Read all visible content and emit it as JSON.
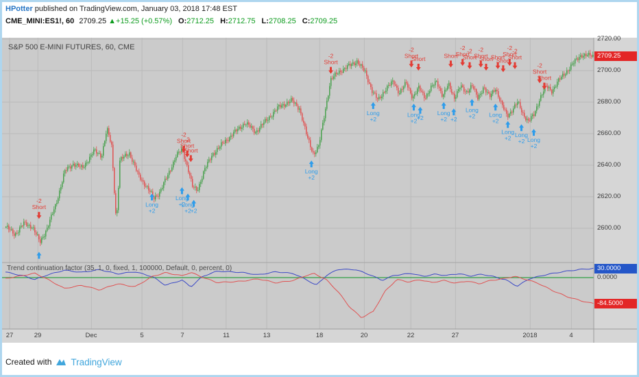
{
  "header": {
    "author": "HPotter",
    "published": " published on TradingView.com, January 03, 2018 17:48 EST",
    "symbol": "CME_MINI:ES1!, 60",
    "last": "2709.25",
    "change_arrow": "▲",
    "change": "+15.25 (+0.57%)",
    "o_label": "O:",
    "o": "2712.25",
    "h_label": "H:",
    "h": "2712.75",
    "l_label": "L:",
    "l": "2708.25",
    "c_label": "C:",
    "c": "2709.25"
  },
  "footer": {
    "created_with": "Created with",
    "brand": "TradingView"
  },
  "chart_data": {
    "type": "candlestick+indicator",
    "title": "S&P 500 E-MINI FUTURES, 60, CME",
    "colors": {
      "up": "#47a04c",
      "down": "#e05151",
      "long": "#2d9ceb",
      "short": "#e33b33",
      "plot_bg": "#cbcbcb",
      "axis_bg": "#d6d6d6",
      "grid": "#bababa",
      "zero_line": "#2f9e44",
      "last_badge": "#e32626"
    },
    "price_pane": {
      "ylim": [
        2580,
        2721
      ],
      "last_price": 2709.25,
      "last_price_label": "2709.25",
      "ticks": [
        {
          "label": "2720.00",
          "value": 2720
        },
        {
          "label": "2700.00",
          "value": 2700
        },
        {
          "label": "2680.00",
          "value": 2680
        },
        {
          "label": "2660.00",
          "value": 2660
        },
        {
          "label": "2640.00",
          "value": 2640
        },
        {
          "label": "2620.00",
          "value": 2620
        },
        {
          "label": "2600.00",
          "value": 2600
        }
      ],
      "path": [
        [
          0,
          2601
        ],
        [
          0.015,
          2596
        ],
        [
          0.03,
          2603
        ],
        [
          0.045,
          2601
        ],
        [
          0.058,
          2591
        ],
        [
          0.07,
          2600
        ],
        [
          0.085,
          2615
        ],
        [
          0.1,
          2636
        ],
        [
          0.115,
          2641
        ],
        [
          0.13,
          2638
        ],
        [
          0.15,
          2649
        ],
        [
          0.163,
          2646
        ],
        [
          0.172,
          2663
        ],
        [
          0.18,
          2652
        ],
        [
          0.188,
          2603
        ],
        [
          0.194,
          2643
        ],
        [
          0.21,
          2648
        ],
        [
          0.225,
          2634
        ],
        [
          0.24,
          2626
        ],
        [
          0.252,
          2619
        ],
        [
          0.262,
          2623
        ],
        [
          0.275,
          2633
        ],
        [
          0.29,
          2646
        ],
        [
          0.3,
          2650
        ],
        [
          0.31,
          2638
        ],
        [
          0.318,
          2626
        ],
        [
          0.326,
          2624
        ],
        [
          0.338,
          2637
        ],
        [
          0.352,
          2647
        ],
        [
          0.37,
          2654
        ],
        [
          0.39,
          2661
        ],
        [
          0.408,
          2667
        ],
        [
          0.425,
          2661
        ],
        [
          0.445,
          2669
        ],
        [
          0.465,
          2677
        ],
        [
          0.487,
          2681
        ],
        [
          0.5,
          2676
        ],
        [
          0.513,
          2658
        ],
        [
          0.524,
          2647
        ],
        [
          0.533,
          2652
        ],
        [
          0.543,
          2673
        ],
        [
          0.553,
          2694
        ],
        [
          0.566,
          2699
        ],
        [
          0.58,
          2702
        ],
        [
          0.598,
          2706
        ],
        [
          0.612,
          2699
        ],
        [
          0.624,
          2687
        ],
        [
          0.634,
          2681
        ],
        [
          0.648,
          2689
        ],
        [
          0.66,
          2693
        ],
        [
          0.67,
          2686
        ],
        [
          0.682,
          2692
        ],
        [
          0.693,
          2683
        ],
        [
          0.703,
          2689
        ],
        [
          0.714,
          2683
        ],
        [
          0.724,
          2689
        ],
        [
          0.734,
          2693
        ],
        [
          0.744,
          2684
        ],
        [
          0.754,
          2691
        ],
        [
          0.764,
          2683
        ],
        [
          0.774,
          2690
        ],
        [
          0.784,
          2686
        ],
        [
          0.794,
          2691
        ],
        [
          0.804,
          2682
        ],
        [
          0.814,
          2690
        ],
        [
          0.824,
          2683
        ],
        [
          0.834,
          2689
        ],
        [
          0.844,
          2679
        ],
        [
          0.854,
          2671
        ],
        [
          0.862,
          2675
        ],
        [
          0.872,
          2680
        ],
        [
          0.88,
          2673
        ],
        [
          0.89,
          2668
        ],
        [
          0.9,
          2672
        ],
        [
          0.91,
          2683
        ],
        [
          0.92,
          2690
        ],
        [
          0.93,
          2687
        ],
        [
          0.94,
          2693
        ],
        [
          0.952,
          2698
        ],
        [
          0.965,
          2704
        ],
        [
          0.98,
          2710
        ],
        [
          1,
          2709.25
        ]
      ]
    },
    "signals": [
      {
        "t": 0.057,
        "price": 2606,
        "side": "short",
        "lines": [
          "-2",
          "Short"
        ]
      },
      {
        "t": 0.057,
        "price": 2585,
        "side": "long",
        "lines": []
      },
      {
        "t": 0.249,
        "price": 2622,
        "side": "long",
        "lines": [
          "Long",
          "+2"
        ]
      },
      {
        "t": 0.303,
        "price": 2648,
        "side": "short",
        "lines": [
          "-2",
          "Short"
        ]
      },
      {
        "t": 0.309,
        "price": 2645,
        "side": "short",
        "lines": [
          "-2",
          "Short"
        ]
      },
      {
        "t": 0.315,
        "price": 2642,
        "side": "short",
        "lines": [
          "Short"
        ]
      },
      {
        "t": 0.3,
        "price": 2626,
        "side": "long",
        "lines": [
          "Long",
          "+2"
        ]
      },
      {
        "t": 0.31,
        "price": 2622,
        "side": "long",
        "lines": [
          "Long",
          "+2"
        ]
      },
      {
        "t": 0.32,
        "price": 2618,
        "side": "long",
        "lines": [
          "+2"
        ]
      },
      {
        "t": 0.52,
        "price": 2643,
        "side": "long",
        "lines": [
          "Long",
          "+2"
        ]
      },
      {
        "t": 0.553,
        "price": 2698,
        "side": "short",
        "lines": [
          "-2",
          "Short"
        ]
      },
      {
        "t": 0.625,
        "price": 2680,
        "side": "long",
        "lines": [
          "Long",
          "+2"
        ]
      },
      {
        "t": 0.69,
        "price": 2702,
        "side": "short",
        "lines": [
          "-2",
          "Short"
        ]
      },
      {
        "t": 0.702,
        "price": 2700,
        "side": "short",
        "lines": [
          "Short"
        ]
      },
      {
        "t": 0.694,
        "price": 2679,
        "side": "long",
        "lines": [
          "Long",
          "+2"
        ]
      },
      {
        "t": 0.705,
        "price": 2677,
        "side": "long",
        "lines": [
          "+2"
        ]
      },
      {
        "t": 0.745,
        "price": 2680,
        "side": "long",
        "lines": [
          "Long",
          "+2"
        ]
      },
      {
        "t": 0.757,
        "price": 2702,
        "side": "short",
        "lines": [
          "Short"
        ]
      },
      {
        "t": 0.762,
        "price": 2676,
        "side": "long",
        "lines": [
          "+2"
        ]
      },
      {
        "t": 0.777,
        "price": 2703,
        "side": "short",
        "lines": [
          "-2",
          "Short"
        ]
      },
      {
        "t": 0.789,
        "price": 2701,
        "side": "short",
        "lines": [
          "-2",
          "Short"
        ]
      },
      {
        "t": 0.793,
        "price": 2682,
        "side": "long",
        "lines": [
          "Long",
          "+2"
        ]
      },
      {
        "t": 0.808,
        "price": 2702,
        "side": "short",
        "lines": [
          "-2",
          "Short"
        ]
      },
      {
        "t": 0.817,
        "price": 2700,
        "side": "short",
        "lines": [
          "Short"
        ]
      },
      {
        "t": 0.833,
        "price": 2679,
        "side": "long",
        "lines": [
          "Long",
          "+2"
        ]
      },
      {
        "t": 0.837,
        "price": 2701,
        "side": "short",
        "lines": [
          "Short"
        ]
      },
      {
        "t": 0.846,
        "price": 2699,
        "side": "short",
        "lines": [
          "Short"
        ]
      },
      {
        "t": 0.854,
        "price": 2668,
        "side": "long",
        "lines": [
          "Long",
          "+2"
        ]
      },
      {
        "t": 0.857,
        "price": 2703,
        "side": "short",
        "lines": [
          "-2",
          "Short"
        ]
      },
      {
        "t": 0.866,
        "price": 2701,
        "side": "short",
        "lines": [
          "-2",
          "Short"
        ]
      },
      {
        "t": 0.877,
        "price": 2666,
        "side": "long",
        "lines": [
          "Long",
          "+2"
        ]
      },
      {
        "t": 0.898,
        "price": 2663,
        "side": "long",
        "lines": [
          "Long",
          "+2"
        ]
      },
      {
        "t": 0.908,
        "price": 2692,
        "side": "short",
        "lines": [
          "-2",
          "Short"
        ]
      },
      {
        "t": 0.916,
        "price": 2688,
        "side": "short",
        "lines": [
          "Short"
        ]
      }
    ],
    "indicator_pane": {
      "title": "Trend continuation factor (35, 1, 0, fixed, 1, 100000, Default, 0, percent, 0)",
      "zero_label": "0.0000",
      "badges": [
        {
          "label": "30.0000",
          "value": 30,
          "color": "#2456c8"
        },
        {
          "label": "-84.5000",
          "value": -84.5,
          "color": "#e32626"
        }
      ],
      "series": [
        {
          "name": "tcf-up",
          "color": "#3b49c6",
          "path": [
            [
              0,
              18
            ],
            [
              0.03,
              6
            ],
            [
              0.05,
              -6
            ],
            [
              0.07,
              8
            ],
            [
              0.1,
              24
            ],
            [
              0.13,
              17
            ],
            [
              0.16,
              26
            ],
            [
              0.19,
              12
            ],
            [
              0.22,
              19
            ],
            [
              0.25,
              3
            ],
            [
              0.272,
              -25
            ],
            [
              0.3,
              -8
            ],
            [
              0.315,
              -30
            ],
            [
              0.335,
              4
            ],
            [
              0.36,
              21
            ],
            [
              0.4,
              17
            ],
            [
              0.43,
              9
            ],
            [
              0.46,
              19
            ],
            [
              0.49,
              13
            ],
            [
              0.515,
              -10
            ],
            [
              0.528,
              -25
            ],
            [
              0.545,
              6
            ],
            [
              0.565,
              27
            ],
            [
              0.595,
              26
            ],
            [
              0.62,
              9
            ],
            [
              0.64,
              -9
            ],
            [
              0.66,
              7
            ],
            [
              0.69,
              14
            ],
            [
              0.71,
              4
            ],
            [
              0.73,
              11
            ],
            [
              0.75,
              7
            ],
            [
              0.77,
              13
            ],
            [
              0.79,
              5
            ],
            [
              0.81,
              11
            ],
            [
              0.83,
              3
            ],
            [
              0.85,
              -7
            ],
            [
              0.87,
              -28
            ],
            [
              0.89,
              -4
            ],
            [
              0.92,
              10
            ],
            [
              0.95,
              20
            ],
            [
              0.975,
              26
            ],
            [
              1,
              30
            ]
          ]
        },
        {
          "name": "tcf-down",
          "color": "#e05151",
          "path": [
            [
              0,
              -3
            ],
            [
              0.03,
              7
            ],
            [
              0.05,
              14
            ],
            [
              0.07,
              -4
            ],
            [
              0.1,
              -35
            ],
            [
              0.13,
              -25
            ],
            [
              0.16,
              -40
            ],
            [
              0.19,
              -20
            ],
            [
              0.22,
              -30
            ],
            [
              0.25,
              4
            ],
            [
              0.272,
              16
            ],
            [
              0.3,
              6
            ],
            [
              0.315,
              17
            ],
            [
              0.335,
              1
            ],
            [
              0.36,
              -16
            ],
            [
              0.4,
              -12
            ],
            [
              0.43,
              -4
            ],
            [
              0.46,
              -17
            ],
            [
              0.49,
              -9
            ],
            [
              0.51,
              6
            ],
            [
              0.525,
              13
            ],
            [
              0.545,
              -6
            ],
            [
              0.565,
              -45
            ],
            [
              0.585,
              -95
            ],
            [
              0.605,
              -130
            ],
            [
              0.625,
              -110
            ],
            [
              0.645,
              -45
            ],
            [
              0.665,
              -6
            ],
            [
              0.685,
              -14
            ],
            [
              0.705,
              -7
            ],
            [
              0.725,
              -16
            ],
            [
              0.745,
              -9
            ],
            [
              0.765,
              -18
            ],
            [
              0.785,
              -11
            ],
            [
              0.805,
              -20
            ],
            [
              0.825,
              -9
            ],
            [
              0.845,
              -4
            ],
            [
              0.865,
              4
            ],
            [
              0.885,
              -6
            ],
            [
              0.905,
              -18
            ],
            [
              0.93,
              -42
            ],
            [
              0.955,
              -62
            ],
            [
              0.98,
              -76
            ],
            [
              1,
              -84.5
            ]
          ]
        }
      ]
    },
    "time_axis": [
      {
        "label": "27",
        "t": 0.007
      },
      {
        "label": "29",
        "t": 0.055
      },
      {
        "label": "Dec",
        "t": 0.146
      },
      {
        "label": "5",
        "t": 0.232
      },
      {
        "label": "7",
        "t": 0.301
      },
      {
        "label": "11",
        "t": 0.375
      },
      {
        "label": "13",
        "t": 0.444
      },
      {
        "label": "18",
        "t": 0.534
      },
      {
        "label": "20",
        "t": 0.61
      },
      {
        "label": "22",
        "t": 0.689
      },
      {
        "label": "27",
        "t": 0.765
      },
      {
        "label": "2018",
        "t": 0.892
      },
      {
        "label": "4",
        "t": 0.962
      }
    ]
  }
}
